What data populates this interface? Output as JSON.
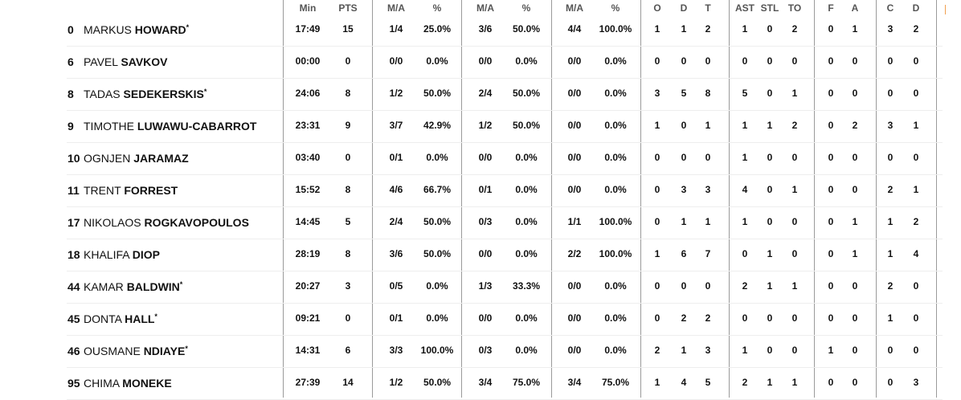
{
  "headers": [
    "Min",
    "PTS",
    "M/A",
    "%",
    "M/A",
    "%",
    "M/A",
    "%",
    "O",
    "D",
    "T",
    "AST",
    "STL",
    "TO",
    "F",
    "A",
    "C",
    "D"
  ],
  "players": [
    {
      "number": "0",
      "first": "MARKUS",
      "last": "HOWARD",
      "starter": true,
      "stats": [
        "17:49",
        "15",
        "1/4",
        "25.0%",
        "3/6",
        "50.0%",
        "4/4",
        "100.0%",
        "1",
        "1",
        "2",
        "1",
        "0",
        "2",
        "0",
        "1",
        "3",
        "2"
      ]
    },
    {
      "number": "6",
      "first": "PAVEL",
      "last": "SAVKOV",
      "starter": false,
      "stats": [
        "00:00",
        "0",
        "0/0",
        "0.0%",
        "0/0",
        "0.0%",
        "0/0",
        "0.0%",
        "0",
        "0",
        "0",
        "0",
        "0",
        "0",
        "0",
        "0",
        "0",
        "0"
      ]
    },
    {
      "number": "8",
      "first": "TADAS",
      "last": "SEDEKERSKIS",
      "starter": true,
      "stats": [
        "24:06",
        "8",
        "1/2",
        "50.0%",
        "2/4",
        "50.0%",
        "0/0",
        "0.0%",
        "3",
        "5",
        "8",
        "5",
        "0",
        "1",
        "0",
        "0",
        "0",
        "0"
      ]
    },
    {
      "number": "9",
      "first": "TIMOTHE",
      "last": "LUWAWU-CABARROT",
      "starter": false,
      "stats": [
        "23:31",
        "9",
        "3/7",
        "42.9%",
        "1/2",
        "50.0%",
        "0/0",
        "0.0%",
        "1",
        "0",
        "1",
        "1",
        "1",
        "2",
        "0",
        "2",
        "3",
        "1"
      ]
    },
    {
      "number": "10",
      "first": "OGNJEN",
      "last": "JARAMAZ",
      "starter": false,
      "stats": [
        "03:40",
        "0",
        "0/1",
        "0.0%",
        "0/0",
        "0.0%",
        "0/0",
        "0.0%",
        "0",
        "0",
        "0",
        "1",
        "0",
        "0",
        "0",
        "0",
        "0",
        "0"
      ]
    },
    {
      "number": "11",
      "first": "TRENT",
      "last": "FORREST",
      "starter": false,
      "stats": [
        "15:52",
        "8",
        "4/6",
        "66.7%",
        "0/1",
        "0.0%",
        "0/0",
        "0.0%",
        "0",
        "3",
        "3",
        "4",
        "0",
        "1",
        "0",
        "0",
        "2",
        "1"
      ]
    },
    {
      "number": "17",
      "first": "NIKOLAOS",
      "last": "ROGKAVOPOULOS",
      "starter": false,
      "stats": [
        "14:45",
        "5",
        "2/4",
        "50.0%",
        "0/3",
        "0.0%",
        "1/1",
        "100.0%",
        "0",
        "1",
        "1",
        "1",
        "0",
        "0",
        "0",
        "1",
        "1",
        "2"
      ]
    },
    {
      "number": "18",
      "first": "KHALIFA",
      "last": "DIOP",
      "starter": false,
      "stats": [
        "28:19",
        "8",
        "3/6",
        "50.0%",
        "0/0",
        "0.0%",
        "2/2",
        "100.0%",
        "1",
        "6",
        "7",
        "0",
        "1",
        "0",
        "0",
        "1",
        "1",
        "4"
      ]
    },
    {
      "number": "44",
      "first": "KAMAR",
      "last": "BALDWIN",
      "starter": true,
      "stats": [
        "20:27",
        "3",
        "0/5",
        "0.0%",
        "1/3",
        "33.3%",
        "0/0",
        "0.0%",
        "0",
        "0",
        "0",
        "2",
        "1",
        "1",
        "0",
        "0",
        "2",
        "0"
      ]
    },
    {
      "number": "45",
      "first": "DONTA",
      "last": "HALL",
      "starter": true,
      "stats": [
        "09:21",
        "0",
        "0/1",
        "0.0%",
        "0/0",
        "0.0%",
        "0/0",
        "0.0%",
        "0",
        "2",
        "2",
        "0",
        "0",
        "0",
        "0",
        "0",
        "1",
        "0"
      ]
    },
    {
      "number": "46",
      "first": "OUSMANE",
      "last": "NDIAYE",
      "starter": true,
      "stats": [
        "14:31",
        "6",
        "3/3",
        "100.0%",
        "0/3",
        "0.0%",
        "0/0",
        "0.0%",
        "2",
        "1",
        "3",
        "1",
        "0",
        "0",
        "1",
        "0",
        "0",
        "0"
      ]
    },
    {
      "number": "95",
      "first": "CHIMA",
      "last": "MONEKE",
      "starter": false,
      "stats": [
        "27:39",
        "14",
        "1/2",
        "50.0%",
        "3/4",
        "75.0%",
        "3/4",
        "75.0%",
        "1",
        "4",
        "5",
        "2",
        "1",
        "1",
        "0",
        "0",
        "0",
        "3"
      ]
    }
  ],
  "starter_mark": "*"
}
